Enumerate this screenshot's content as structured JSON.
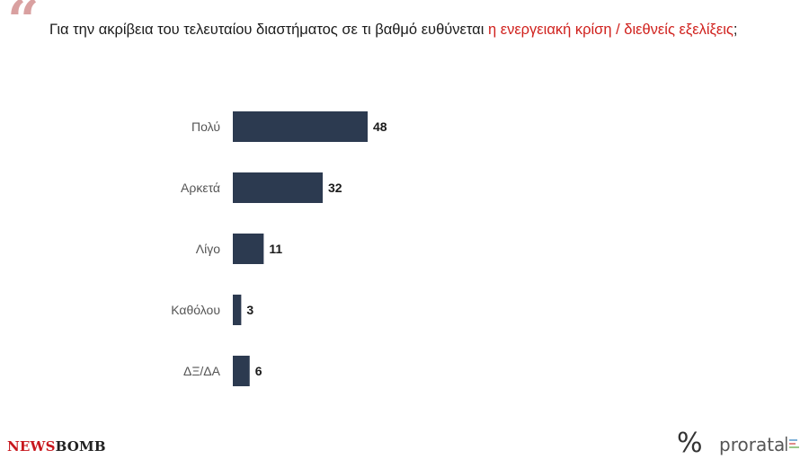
{
  "header": {
    "quote_icon": "quote-mark-icon",
    "question_text": "Για την ακρίβεια του τελευταίου διαστήματος σε τι βαθμό ευθύνεται ",
    "question_highlight": "η ενεργειακή κρίση / διεθνείς εξελίξεις",
    "question_end": ";"
  },
  "colors": {
    "bar": "#2c3a50",
    "highlight": "#d0211d",
    "quote_mark": "#d9a0a0"
  },
  "chart_data": {
    "type": "bar",
    "orientation": "horizontal",
    "categories": [
      "Πολύ",
      "Αρκετά",
      "Λίγο",
      "Καθόλου",
      "ΔΞ/ΔΑ"
    ],
    "values": [
      48,
      32,
      11,
      3,
      6
    ],
    "title": "",
    "xlabel": "",
    "ylabel": "",
    "xlim": [
      0,
      50
    ],
    "grid": false,
    "legend": "none"
  },
  "footer": {
    "newsbomb_news": "NEWS",
    "newsbomb_bomb": "BOMB",
    "percent_icon": "%",
    "brand": "prorata"
  }
}
